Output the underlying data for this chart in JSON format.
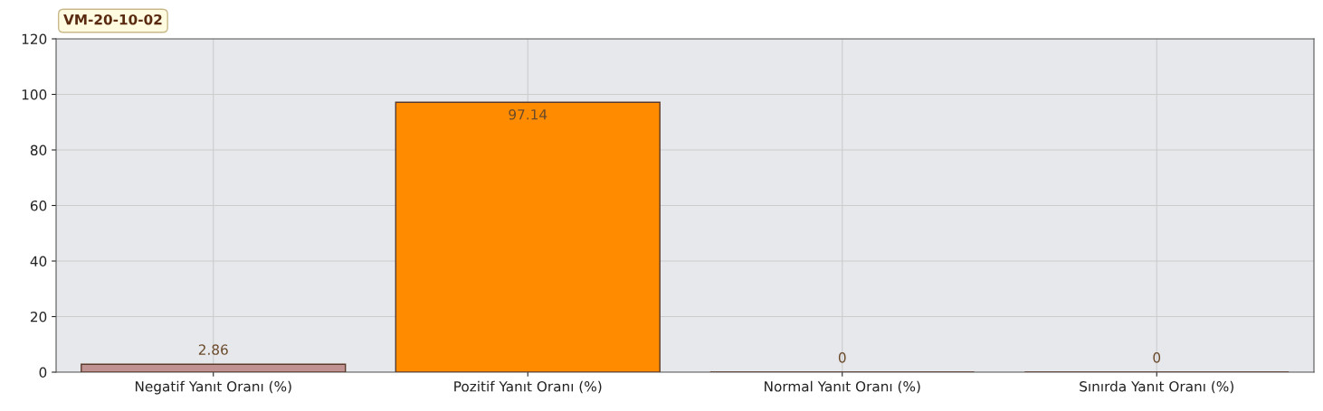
{
  "chart_data": {
    "type": "bar",
    "title": "VM-20-10-02",
    "categories": [
      "Negatif Yanıt Oranı (%)",
      "Pozitif Yanıt Oranı (%)",
      "Normal Yanıt Oranı (%)",
      "Sınırda Yanıt Oranı (%)"
    ],
    "values": [
      2.86,
      97.14,
      0,
      0
    ],
    "colors": [
      "#c09292",
      "#ff8c00",
      null,
      null
    ],
    "ylim": [
      0,
      120
    ],
    "yticks": [
      0,
      20,
      40,
      60,
      80,
      100,
      120
    ],
    "grid": true,
    "data_labels": true
  }
}
